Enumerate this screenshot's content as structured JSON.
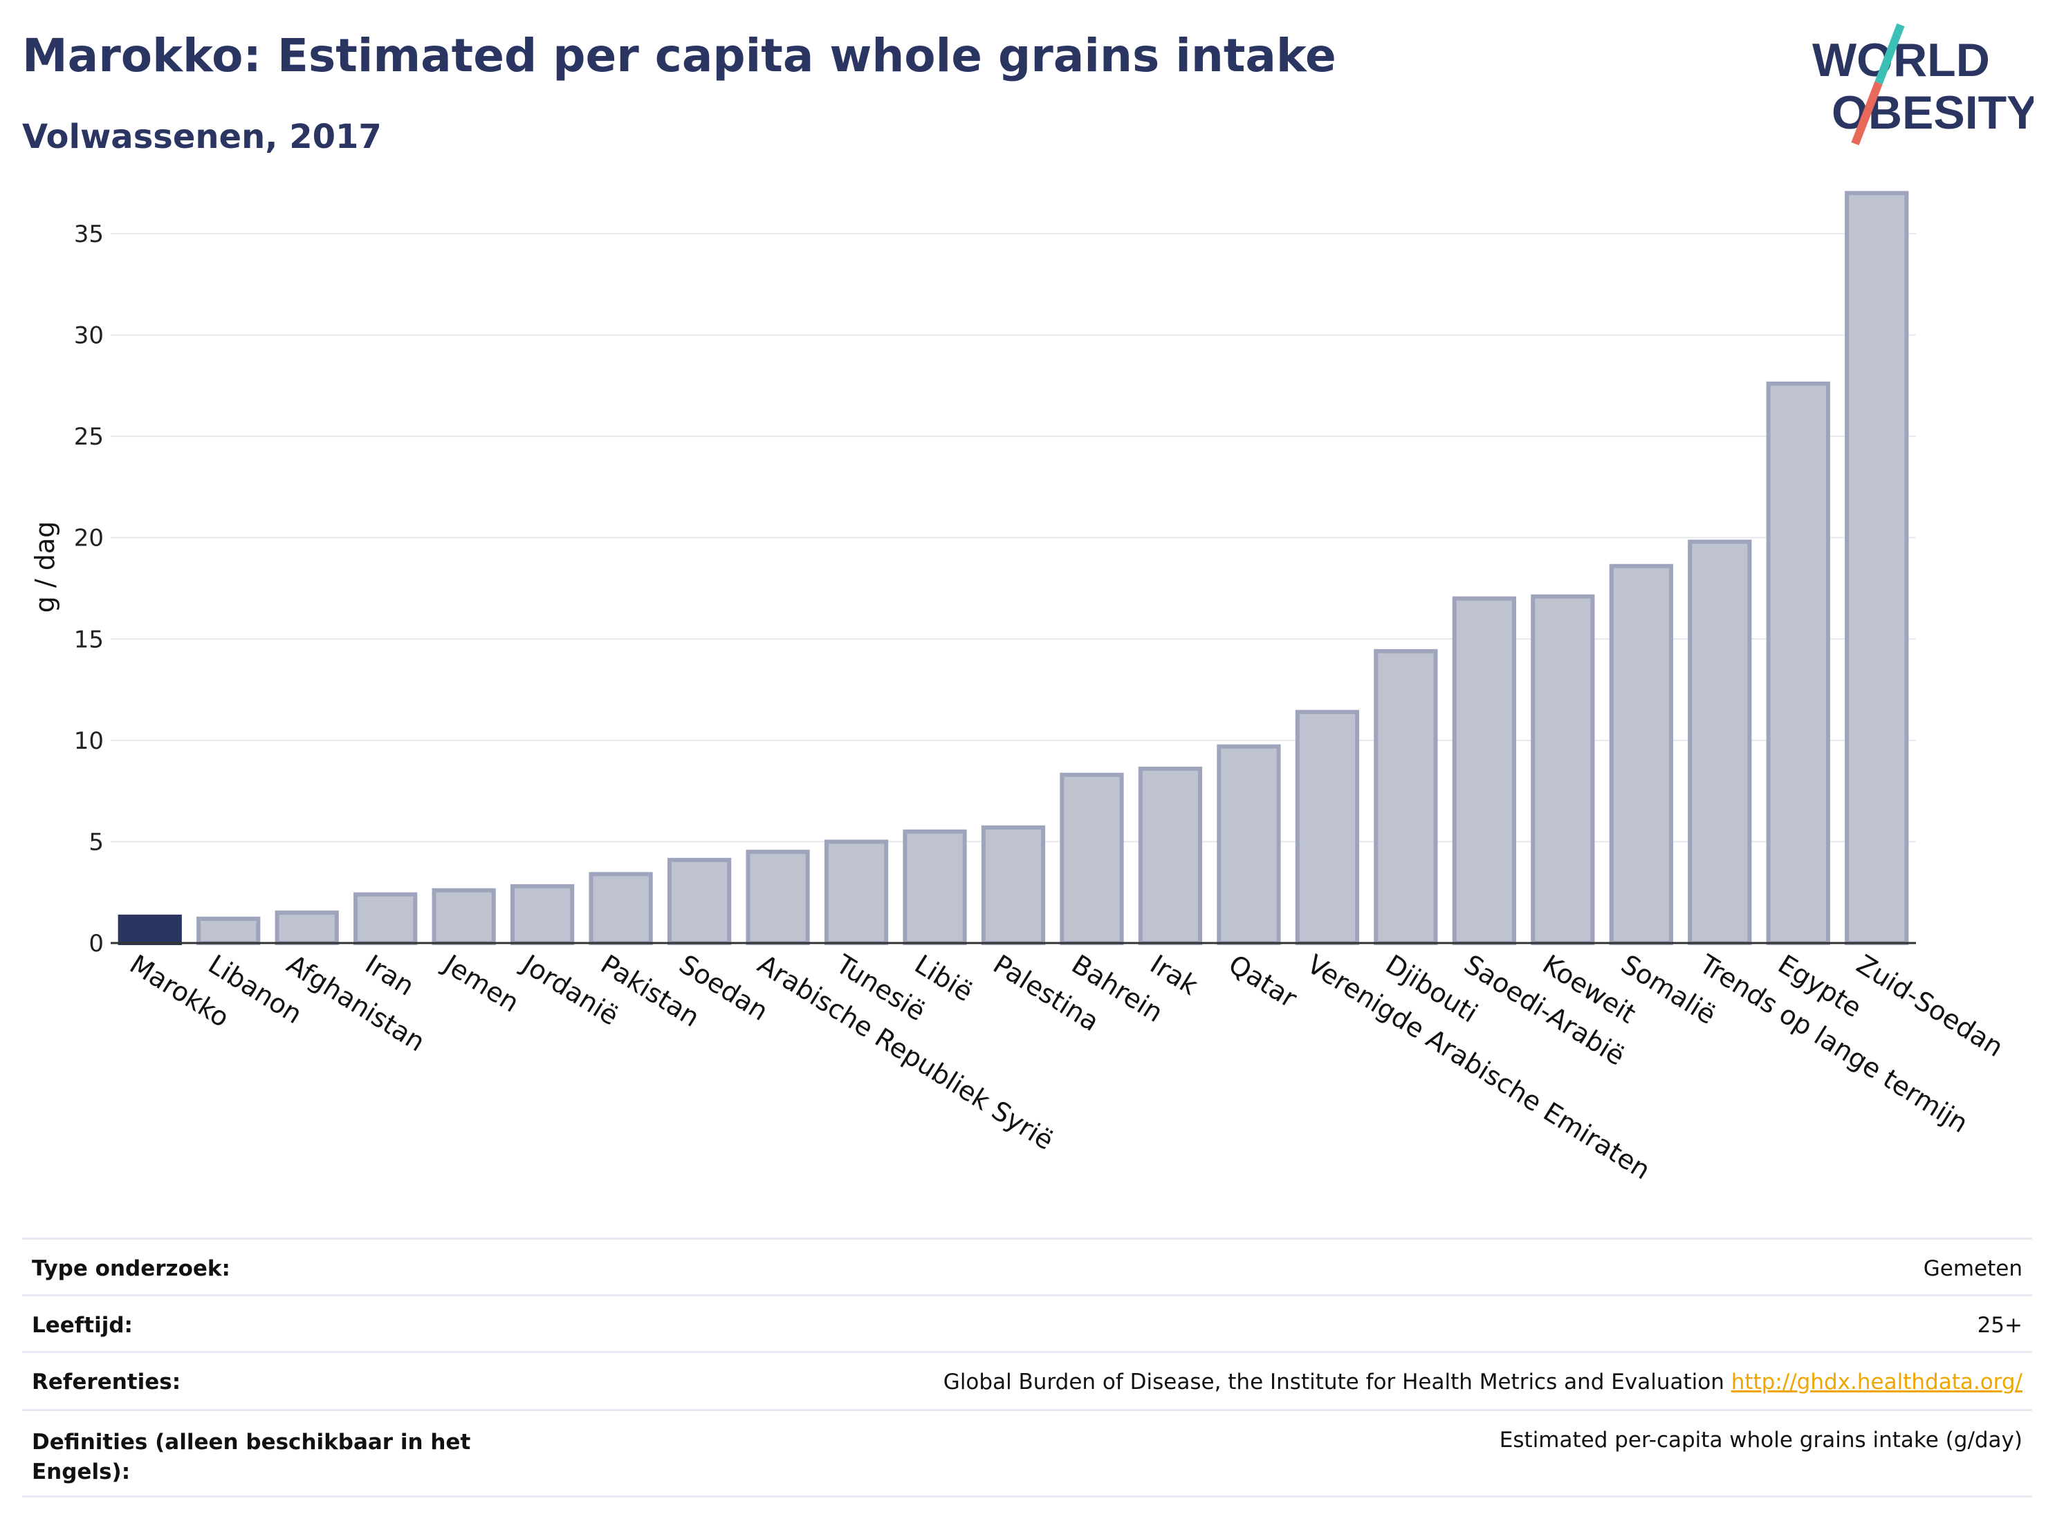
{
  "header": {
    "title": "Marokko: Estimated per capita whole grains intake",
    "subtitle": "Volwassenen, 2017"
  },
  "logo": {
    "line1": "WORLD",
    "line2": "OBESITY"
  },
  "colors": {
    "highlight": "#2b3561",
    "bar": "#bfc3d0",
    "bar_border": "#9ea4bc",
    "gridline": "#e6e8ee",
    "link": "#f0a500",
    "logo_teal": "#3cc0b5",
    "logo_red": "#e8685a"
  },
  "chart_data": {
    "type": "bar",
    "ylabel": "g / dag",
    "ylim": [
      0,
      38
    ],
    "yticks": [
      0,
      5,
      10,
      15,
      20,
      25,
      30,
      35
    ],
    "grid": true,
    "highlight_category": "Marokko",
    "categories": [
      "Marokko",
      "Libanon",
      "Afghanistan",
      "Iran",
      "Jemen",
      "Jordanië",
      "Pakistan",
      "Soedan",
      "Arabische Republiek Syrië",
      "Tunesië",
      "Libië",
      "Palestina",
      "Bahrein",
      "Irak",
      "Qatar",
      "Verenigde Arabische Emiraten",
      "Djibouti",
      "Saoedi-Arabië",
      "Koeweit",
      "Somalië",
      "Trends op lange termijn",
      "Egypte",
      "Zuid-Soedan"
    ],
    "values": [
      1.3,
      1.2,
      1.5,
      2.4,
      2.6,
      2.8,
      3.4,
      4.1,
      4.5,
      5.0,
      5.5,
      5.7,
      8.3,
      8.6,
      9.7,
      11.4,
      14.4,
      17.0,
      17.1,
      18.6,
      19.8,
      27.6,
      37.0
    ]
  },
  "info": {
    "rows": [
      {
        "label": "Type onderzoek:",
        "value": "Gemeten"
      },
      {
        "label": "Leeftijd:",
        "value": "25+"
      },
      {
        "label": "Referenties:",
        "value": "Global Burden of Disease, the Institute for Health Metrics and Evaluation",
        "link": "http://ghdx.healthdata.org/"
      },
      {
        "label": "Definities (alleen beschikbaar in het Engels):",
        "value": "Estimated per-capita whole grains intake (g/day)"
      }
    ]
  }
}
